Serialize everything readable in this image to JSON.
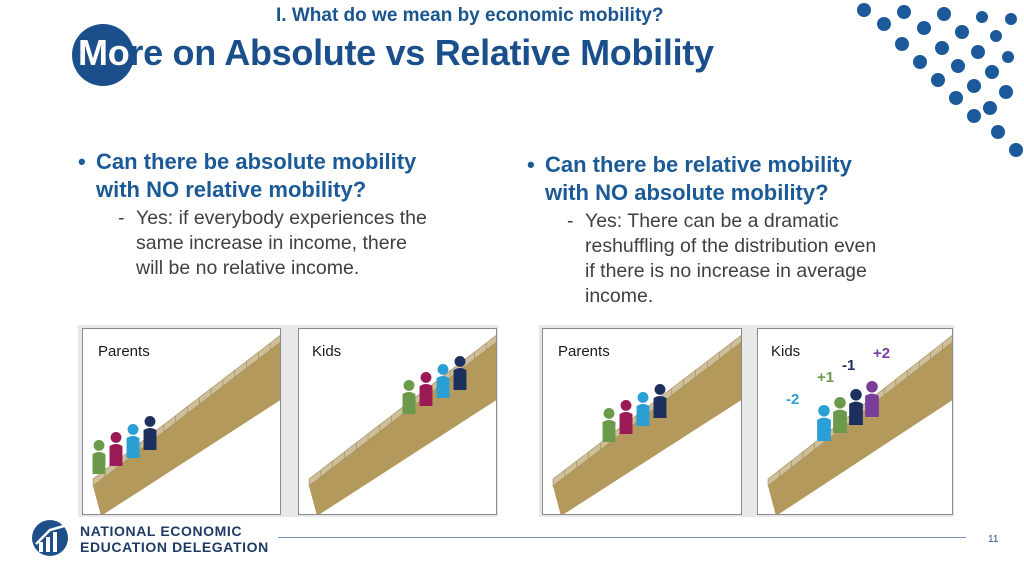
{
  "header": {
    "section_title": "I. What do we mean by economic mobility?",
    "title_highlight": "Mo",
    "title_rest": "re on Absolute vs Relative Mobility"
  },
  "left_bullet": {
    "heading_line1": "Can there be absolute mobility",
    "heading_line2": "with NO relative mobility?",
    "sub_line1": "Yes: if everybody experiences the",
    "sub_line2": "same increase in income, there",
    "sub_line3": "will be no relative income."
  },
  "right_bullet": {
    "heading_line1": "Can there be relative mobility",
    "heading_line2": "with NO absolute mobility?",
    "sub_line1": "Yes: There can be a dramatic",
    "sub_line2": "reshuffling of the distribution even",
    "sub_line3": "if there is no increase in average",
    "sub_line4": "income."
  },
  "panels": {
    "left_parents": "Parents",
    "left_kids": "Kids",
    "right_parents": "Parents",
    "right_kids": "Kids"
  },
  "deltas": {
    "purple": "+2",
    "navy": "-1",
    "green": "+1",
    "blue": "-2"
  },
  "figure_colors": {
    "green": "#6a9a4a",
    "magenta": "#9b1a55",
    "blue": "#2a9fd6",
    "navy": "#1d2f5e",
    "purple": "#7a3e9a",
    "stair": "#b39a5c",
    "step": "#cdbf9a"
  },
  "footer": {
    "logo_line1": "NATIONAL ECONOMIC",
    "logo_line2": "EDUCATION DELEGATION",
    "page_number": "11"
  }
}
